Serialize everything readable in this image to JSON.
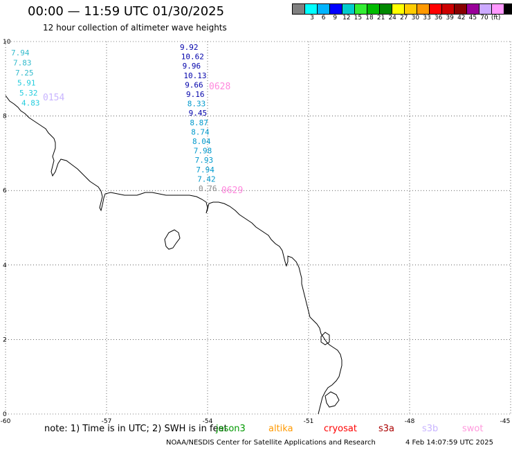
{
  "header": {
    "title": "00:00 — 11:59 UTC 01/30/2025",
    "subtitle": "12 hour collection of altimeter wave heights"
  },
  "legend": {
    "colors": [
      "#808080",
      "#00ffff",
      "#00b4ff",
      "#0000ff",
      "#00cccc",
      "#33ee33",
      "#00bb00",
      "#008800",
      "#ffff00",
      "#ffcc00",
      "#ff9900",
      "#ff0000",
      "#cc0000",
      "#880000",
      "#990099",
      "#ccaaff",
      "#ff99ff",
      "#000000"
    ],
    "labels": [
      "3",
      "6",
      "9",
      "12",
      "15",
      "18",
      "21",
      "24",
      "27",
      "30",
      "33",
      "36",
      "39",
      "42",
      "45",
      "70",
      "(ft)"
    ]
  },
  "map": {
    "lon_ticks": [
      "-60",
      "-57",
      "-54",
      "-51",
      "-48",
      "-45"
    ],
    "lat_ticks": [
      "0",
      "2",
      "4",
      "6",
      "8",
      "10"
    ],
    "lon_range": [
      -60,
      -45
    ],
    "lat_range": [
      0,
      10
    ],
    "grid": "dotted",
    "coastline_color": "#000000"
  },
  "track_west": {
    "pass_label": "0154",
    "pass_color": "#c8b4ff",
    "values": [
      {
        "text": "7.94",
        "color": "#33bbcc"
      },
      {
        "text": "7.83",
        "color": "#33bbcc"
      },
      {
        "text": "7.25",
        "color": "#33bbcc"
      },
      {
        "text": "5.91",
        "color": "#22ccdd"
      },
      {
        "text": "5.32",
        "color": "#22ccdd"
      },
      {
        "text": "4.83",
        "color": "#22ccdd"
      }
    ]
  },
  "track_center": {
    "pass_label_top": "0628",
    "pass_label_bottom": "0629",
    "pass_color": "#ff88dd",
    "values": [
      {
        "text": "9.92",
        "color": "#0000aa"
      },
      {
        "text": "10.62",
        "color": "#0000aa"
      },
      {
        "text": "9.96",
        "color": "#0000aa"
      },
      {
        "text": "10.13",
        "color": "#0000aa"
      },
      {
        "text": "9.66",
        "color": "#0000aa"
      },
      {
        "text": "9.16",
        "color": "#0000aa"
      },
      {
        "text": "8.33",
        "color": "#0099cc"
      },
      {
        "text": "9.45",
        "color": "#0000aa"
      },
      {
        "text": "8.87",
        "color": "#0099cc"
      },
      {
        "text": "8.74",
        "color": "#0099cc"
      },
      {
        "text": "8.04",
        "color": "#0099cc"
      },
      {
        "text": "7.98",
        "color": "#0099cc"
      },
      {
        "text": "7.93",
        "color": "#0099cc"
      },
      {
        "text": "7.94",
        "color": "#0099cc"
      },
      {
        "text": "7.42",
        "color": "#0099cc"
      },
      {
        "text": "0.76",
        "color": "#888888"
      }
    ]
  },
  "footer": {
    "note": "note: 1) Time is in UTC; 2) SWH is in feet",
    "satellites": [
      {
        "name": "jason3",
        "color": "#009900"
      },
      {
        "name": "altika",
        "color": "#ff9900"
      },
      {
        "name": "cryosat",
        "color": "#ff0000"
      },
      {
        "name": "s3a",
        "color": "#aa0000"
      },
      {
        "name": "s3b",
        "color": "#c8b4ff"
      },
      {
        "name": "swot",
        "color": "#ff99dd"
      }
    ],
    "credit": "NOAA/NESDIS Center for Satellite Applications and Research",
    "timestamp": "4 Feb 14:07:59 UTC 2025"
  }
}
